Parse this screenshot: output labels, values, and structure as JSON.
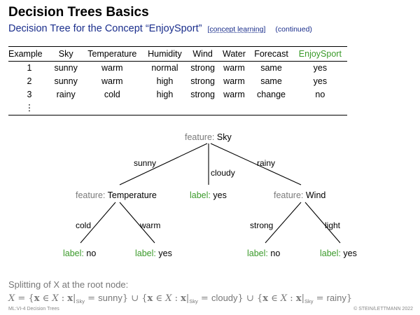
{
  "title": "Decision Trees Basics",
  "subtitle": "Decision Tree for the Concept “EnjoySport”",
  "subtitle_tag": "[concept learning]",
  "subtitle_cont": "(continued)",
  "table": {
    "headers": [
      "Example",
      "Sky",
      "Temperature",
      "Humidity",
      "Wind",
      "Water",
      "Forecast",
      "EnjoySport"
    ],
    "rows": [
      [
        "1",
        "sunny",
        "warm",
        "normal",
        "strong",
        "warm",
        "same",
        "yes"
      ],
      [
        "2",
        "sunny",
        "warm",
        "high",
        "strong",
        "warm",
        "same",
        "yes"
      ],
      [
        "3",
        "rainy",
        "cold",
        "high",
        "strong",
        "warm",
        "change",
        "no"
      ],
      [
        "⋮",
        "",
        "",
        "",
        "",
        "",
        "",
        ""
      ]
    ]
  },
  "tree": {
    "feature_prefix": "feature:",
    "label_prefix": "label:",
    "root": "Sky",
    "edge_sunny": "sunny",
    "edge_cloudy": "cloudy",
    "edge_rainy": "rainy",
    "temp": "Temperature",
    "cloudy_label": "yes",
    "wind": "Wind",
    "edge_cold": "cold",
    "edge_warm": "warm",
    "edge_strong": "strong",
    "edge_light": "light",
    "leaf_cold": "no",
    "leaf_warm": "yes",
    "leaf_strong": "no",
    "leaf_light": "yes"
  },
  "split_text": "Splitting of X at the root node:",
  "formula": {
    "sunny": "sunny",
    "cloudy": "cloudy",
    "rainy": "rainy",
    "sub": "Sky"
  },
  "footer_left": "ML:VI-4   Decision Trees",
  "footer_right": "© STEIN/LETTMANN 2022"
}
